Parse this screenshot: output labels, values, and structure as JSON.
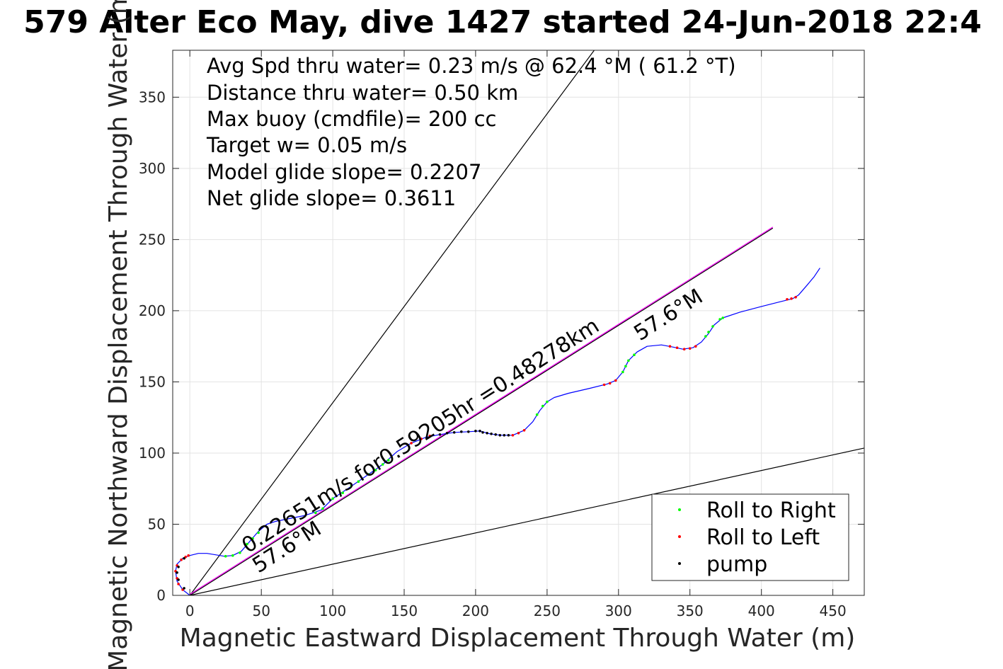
{
  "chart_data": {
    "type": "line",
    "title": "579 Alter Eco May, dive 1427 started 24-Jun-2018 22:4",
    "xlabel": "Magnetic Eastward Displacement Through Water (m)",
    "ylabel": "Magnetic Northward Displacement Through Water (m)",
    "xlim": [
      -12,
      472
    ],
    "ylim": [
      0,
      383
    ],
    "xticks": [
      0,
      50,
      100,
      150,
      200,
      250,
      300,
      350,
      400,
      450
    ],
    "yticks": [
      0,
      50,
      100,
      150,
      200,
      250,
      300,
      350
    ],
    "grid": true,
    "legend_position": "bottom-right",
    "annotations": [
      "Avg Spd thru water=  0.23 m/s @  62.4 °M ( 61.2 °T)",
      "Distance thru water=  0.50 km",
      "Max buoy (cmdfile)= 200 cc",
      "Target w= 0.05 m/s",
      "Model glide slope= 0.2207",
      "Net glide slope= 0.3611"
    ],
    "rotated_labels": {
      "speed": "0.22651m/s for0.59205hr =0.48278km",
      "heading_upper": "57.6°M",
      "heading_lower": "57.6°M"
    },
    "track": [
      [
        0,
        0
      ],
      [
        -5,
        4
      ],
      [
        -9,
        10
      ],
      [
        -10,
        17
      ],
      [
        -9,
        22
      ],
      [
        -5,
        26
      ],
      [
        0,
        28
      ],
      [
        6,
        29.5
      ],
      [
        12,
        29.5
      ],
      [
        18,
        28.5
      ],
      [
        24,
        27.5
      ],
      [
        30,
        28
      ],
      [
        36,
        31
      ],
      [
        42,
        38
      ],
      [
        48,
        45
      ],
      [
        54,
        50
      ],
      [
        60,
        52
      ],
      [
        70,
        54
      ],
      [
        80,
        56
      ],
      [
        92,
        60
      ],
      [
        100,
        68
      ],
      [
        112,
        76
      ],
      [
        125,
        85
      ],
      [
        135,
        92
      ],
      [
        145,
        101
      ],
      [
        155,
        107
      ],
      [
        165,
        111
      ],
      [
        175,
        113
      ],
      [
        185,
        114.5
      ],
      [
        195,
        115
      ],
      [
        203,
        115.5
      ],
      [
        210,
        113.5
      ],
      [
        218,
        112.5
      ],
      [
        226,
        112.5
      ],
      [
        234,
        116
      ],
      [
        240,
        122
      ],
      [
        245,
        130
      ],
      [
        250,
        136
      ],
      [
        255,
        139
      ],
      [
        265,
        142
      ],
      [
        280,
        145.5
      ],
      [
        292,
        148.5
      ],
      [
        298,
        151
      ],
      [
        303,
        157
      ],
      [
        307,
        165
      ],
      [
        313,
        171
      ],
      [
        320,
        175
      ],
      [
        330,
        176
      ],
      [
        338,
        174.5
      ],
      [
        345,
        173
      ],
      [
        352,
        174
      ],
      [
        358,
        178
      ],
      [
        363,
        184
      ],
      [
        367,
        190
      ],
      [
        373,
        195
      ],
      [
        385,
        199
      ],
      [
        400,
        203
      ],
      [
        412,
        206
      ],
      [
        422,
        208.5
      ],
      [
        426,
        211
      ],
      [
        432,
        218
      ],
      [
        437,
        224
      ],
      [
        441,
        230
      ]
    ],
    "roll_right_points": [
      [
        25,
        27.5
      ],
      [
        30,
        28
      ],
      [
        35,
        30
      ],
      [
        40,
        36
      ],
      [
        44,
        40
      ],
      [
        48,
        44
      ],
      [
        88,
        58
      ],
      [
        93,
        61
      ],
      [
        100,
        68
      ],
      [
        107,
        72
      ],
      [
        113,
        77
      ],
      [
        118,
        80
      ],
      [
        125,
        85
      ],
      [
        130,
        88
      ],
      [
        135,
        92
      ],
      [
        139,
        95
      ],
      [
        243,
        127
      ],
      [
        247,
        133
      ],
      [
        250,
        136
      ],
      [
        303,
        157
      ],
      [
        305,
        161
      ],
      [
        307,
        165
      ],
      [
        311,
        169
      ],
      [
        361,
        182
      ],
      [
        363,
        185
      ],
      [
        366,
        189
      ],
      [
        371,
        194
      ],
      [
        373,
        195
      ]
    ],
    "roll_left_points": [
      [
        -5,
        4
      ],
      [
        -8,
        8
      ],
      [
        -9,
        12
      ],
      [
        -10,
        17
      ],
      [
        -9,
        21
      ],
      [
        -6,
        25
      ],
      [
        -3,
        27
      ],
      [
        -1,
        28
      ],
      [
        155,
        107
      ],
      [
        162,
        110
      ],
      [
        168,
        112
      ],
      [
        226,
        112.5
      ],
      [
        230,
        114
      ],
      [
        234,
        116
      ],
      [
        290,
        148
      ],
      [
        294,
        149
      ],
      [
        298,
        151
      ],
      [
        336,
        175
      ],
      [
        341,
        174
      ],
      [
        346,
        173
      ],
      [
        350,
        173.5
      ],
      [
        354,
        175
      ],
      [
        418,
        208
      ],
      [
        421,
        208.5
      ],
      [
        424,
        209.5
      ]
    ],
    "pump_points": [
      [
        -4,
        5
      ],
      [
        -8,
        11
      ],
      [
        -9,
        16
      ],
      [
        -8,
        20
      ],
      [
        -4,
        26
      ],
      [
        175,
        113
      ],
      [
        180,
        114
      ],
      [
        185,
        114.5
      ],
      [
        190,
        115
      ],
      [
        195,
        115
      ],
      [
        200,
        115.5
      ],
      [
        203,
        115.5
      ],
      [
        205,
        114.5
      ],
      [
        208,
        114
      ],
      [
        211,
        113.5
      ],
      [
        214,
        113
      ],
      [
        217,
        112.5
      ],
      [
        220,
        112.5
      ],
      [
        223,
        112.5
      ]
    ],
    "reference_lines": [
      {
        "from": [
          0,
          0
        ],
        "to": [
          283,
          383
        ]
      },
      {
        "from": [
          0,
          0
        ],
        "to": [
          472,
          103.5
        ]
      },
      {
        "from": [
          0,
          0
        ],
        "to": [
          408,
          258
        ]
      }
    ],
    "series": [
      {
        "name": "Roll to Right",
        "color": "#00ff00"
      },
      {
        "name": "Roll to Left",
        "color": "#ff0000"
      },
      {
        "name": "pump",
        "color": "#000000"
      }
    ],
    "colors": {
      "track": "#0000ff",
      "heading_line": "#ff00ff",
      "reference": "#000000",
      "grid": "#e3e3e3",
      "axes": "#262626"
    }
  }
}
